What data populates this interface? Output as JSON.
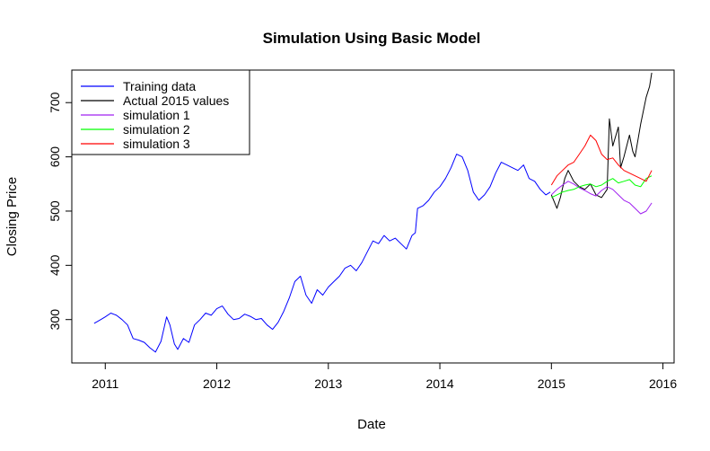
{
  "chart_data": {
    "type": "line",
    "title": "Simulation Using Basic Model",
    "xlabel": "Date",
    "ylabel": "Closing Price",
    "xlim": [
      2010.7,
      2016.1
    ],
    "ylim": [
      220,
      760
    ],
    "x_ticks": [
      2011,
      2012,
      2013,
      2014,
      2015,
      2016
    ],
    "x_tick_labels": [
      "2011",
      "2012",
      "2013",
      "2014",
      "2015",
      "2016"
    ],
    "y_ticks": [
      300,
      400,
      500,
      600,
      700
    ],
    "y_tick_labels": [
      "300",
      "400",
      "500",
      "600",
      "700"
    ],
    "grid": false,
    "legend": "top-left",
    "series": [
      {
        "name": "Training data",
        "color": "#0000ff",
        "x": [
          2010.9,
          2010.96,
          2011.0,
          2011.05,
          2011.1,
          2011.15,
          2011.2,
          2011.25,
          2011.3,
          2011.35,
          2011.4,
          2011.45,
          2011.5,
          2011.55,
          2011.58,
          2011.62,
          2011.65,
          2011.7,
          2011.75,
          2011.8,
          2011.85,
          2011.9,
          2011.95,
          2012.0,
          2012.05,
          2012.1,
          2012.15,
          2012.2,
          2012.25,
          2012.3,
          2012.35,
          2012.4,
          2012.45,
          2012.5,
          2012.55,
          2012.6,
          2012.65,
          2012.7,
          2012.75,
          2012.8,
          2012.85,
          2012.9,
          2012.95,
          2013.0,
          2013.05,
          2013.1,
          2013.15,
          2013.2,
          2013.25,
          2013.3,
          2013.35,
          2013.4,
          2013.45,
          2013.5,
          2013.55,
          2013.6,
          2013.65,
          2013.7,
          2013.75,
          2013.78,
          2013.8,
          2013.85,
          2013.9,
          2013.95,
          2014.0,
          2014.05,
          2014.1,
          2014.15,
          2014.2,
          2014.25,
          2014.3,
          2014.35,
          2014.4,
          2014.45,
          2014.5,
          2014.55,
          2014.6,
          2014.65,
          2014.7,
          2014.75,
          2014.8,
          2014.85,
          2014.9,
          2014.95,
          2014.99
        ],
        "y": [
          293,
          300,
          305,
          312,
          308,
          300,
          290,
          265,
          262,
          258,
          248,
          240,
          260,
          305,
          290,
          255,
          245,
          265,
          258,
          290,
          300,
          312,
          308,
          320,
          325,
          310,
          300,
          302,
          310,
          306,
          300,
          302,
          290,
          282,
          295,
          315,
          340,
          370,
          380,
          345,
          330,
          355,
          345,
          360,
          370,
          380,
          395,
          400,
          390,
          405,
          425,
          445,
          440,
          455,
          445,
          450,
          440,
          430,
          455,
          460,
          505,
          510,
          520,
          535,
          545,
          560,
          580,
          605,
          600,
          575,
          535,
          520,
          530,
          545,
          570,
          590,
          585,
          580,
          575,
          585,
          560,
          555,
          540,
          530,
          535
        ]
      },
      {
        "name": "Actual 2015 values",
        "color": "#000000",
        "x": [
          2015.0,
          2015.05,
          2015.08,
          2015.12,
          2015.15,
          2015.2,
          2015.25,
          2015.3,
          2015.35,
          2015.4,
          2015.45,
          2015.5,
          2015.52,
          2015.55,
          2015.6,
          2015.62,
          2015.65,
          2015.7,
          2015.73,
          2015.75,
          2015.8,
          2015.85,
          2015.88,
          2015.9
        ],
        "y": [
          530,
          505,
          525,
          560,
          575,
          555,
          545,
          540,
          550,
          530,
          525,
          540,
          670,
          620,
          655,
          580,
          600,
          640,
          610,
          600,
          660,
          710,
          730,
          755
        ]
      },
      {
        "name": "simulation 1",
        "color": "#a020f0",
        "x": [
          2015.0,
          2015.05,
          2015.1,
          2015.15,
          2015.2,
          2015.25,
          2015.3,
          2015.35,
          2015.4,
          2015.45,
          2015.5,
          2015.55,
          2015.6,
          2015.65,
          2015.7,
          2015.75,
          2015.8,
          2015.85,
          2015.9
        ],
        "y": [
          530,
          540,
          548,
          555,
          550,
          543,
          538,
          532,
          528,
          538,
          545,
          540,
          530,
          520,
          515,
          505,
          495,
          500,
          515
        ]
      },
      {
        "name": "simulation 2",
        "color": "#00ff00",
        "x": [
          2015.0,
          2015.05,
          2015.1,
          2015.15,
          2015.2,
          2015.25,
          2015.3,
          2015.35,
          2015.4,
          2015.45,
          2015.5,
          2015.55,
          2015.6,
          2015.65,
          2015.7,
          2015.75,
          2015.8,
          2015.85,
          2015.9
        ],
        "y": [
          525,
          530,
          535,
          538,
          540,
          545,
          548,
          550,
          545,
          548,
          555,
          560,
          552,
          555,
          558,
          548,
          545,
          560,
          565
        ]
      },
      {
        "name": "simulation 3",
        "color": "#ff0000",
        "x": [
          2015.0,
          2015.05,
          2015.1,
          2015.15,
          2015.2,
          2015.25,
          2015.3,
          2015.35,
          2015.4,
          2015.45,
          2015.5,
          2015.55,
          2015.6,
          2015.65,
          2015.7,
          2015.75,
          2015.8,
          2015.85,
          2015.9
        ],
        "y": [
          548,
          565,
          575,
          585,
          590,
          605,
          620,
          640,
          630,
          605,
          595,
          598,
          585,
          575,
          570,
          565,
          560,
          555,
          575
        ]
      }
    ]
  }
}
